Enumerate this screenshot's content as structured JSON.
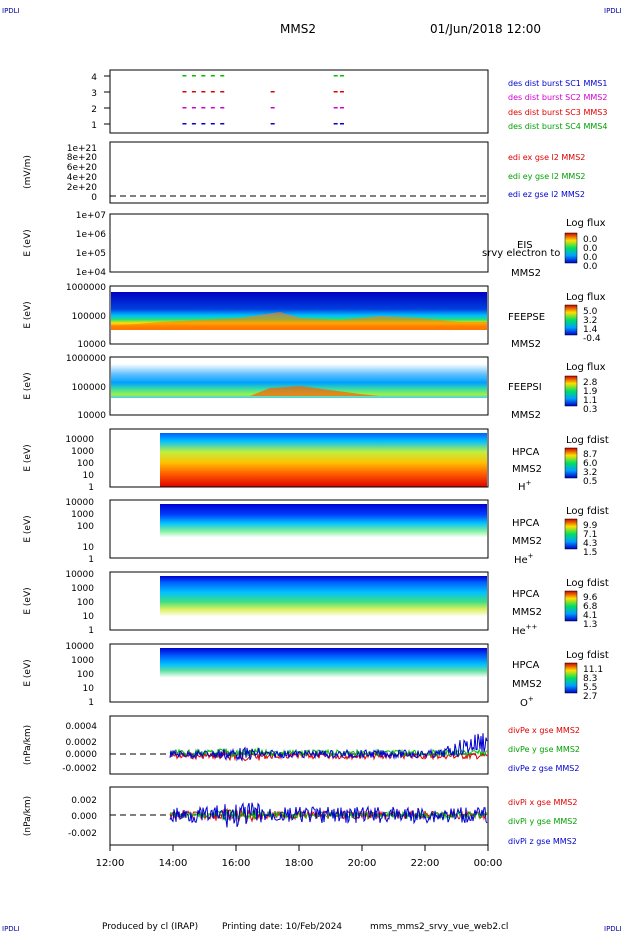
{
  "header": {
    "corner_left": "IPDLI",
    "corner_right": "IPDLI",
    "spacecraft": "MMS2",
    "datetime": "01/Jun/2018 12:00",
    "corner_bottom_left": "IPDLI",
    "corner_bottom_right": "IPDLI"
  },
  "footer": {
    "produced_by": "Produced by cl (IRAP)",
    "printing_date": "Printing date: 10/Feb/2024",
    "filename": "mms_mms2_srvy_vue_web2.cl"
  },
  "colors": {
    "red": "#e00000",
    "green": "#00c000",
    "blue": "#0000d0",
    "magenta": "#d000d0"
  },
  "chart_data": [
    {
      "type": "scatter",
      "panel": "burst",
      "y_ticks": [
        "4",
        "3",
        "2",
        "1"
      ],
      "legend": [
        {
          "text": "des dist burst SC1 MMS1",
          "color": "#0000d0"
        },
        {
          "text": "des dist burst SC2 MMS2",
          "color": "#d000d0"
        },
        {
          "text": "des dist burst SC3 MMS3",
          "color": "#e00000"
        },
        {
          "text": "des dist burst SC4 MMS4",
          "color": "#00c000"
        }
      ],
      "series": [
        {
          "level": 4,
          "color": "#00c000",
          "x": [
            14.3,
            14.6,
            14.9,
            15.2,
            15.5,
            19.1,
            19.3
          ]
        },
        {
          "level": 3,
          "color": "#e00000",
          "x": [
            14.3,
            14.6,
            14.9,
            15.2,
            15.5,
            17.1,
            19.1,
            19.3
          ]
        },
        {
          "level": 2,
          "color": "#d000d0",
          "x": [
            14.3,
            14.6,
            14.9,
            15.2,
            15.5,
            17.1,
            19.1,
            19.3
          ]
        },
        {
          "level": 1,
          "color": "#0000d0",
          "x": [
            14.3,
            14.6,
            14.9,
            15.2,
            15.5,
            17.1,
            19.1,
            19.3
          ]
        }
      ]
    },
    {
      "type": "line",
      "panel": "edi",
      "ylabel": "(mV/m)",
      "y_ticks": [
        "1e+21",
        "8e+20",
        "6e+20",
        "4e+20",
        "2e+20",
        "0"
      ],
      "legend": [
        {
          "text": "edi ex gse l2 MMS2",
          "color": "#e00000"
        },
        {
          "text": "edi ey gse l2 MMS2",
          "color": "#00c000"
        },
        {
          "text": "edi ez gse l2 MMS2",
          "color": "#0000d0"
        }
      ]
    },
    {
      "type": "heatmap",
      "panel": "eis",
      "ylabel": "E (eV)",
      "y_ticks": [
        "1e+07",
        "1e+06",
        "1e+05",
        "1e+04"
      ],
      "label_1": "EIS",
      "label_2": "srvy electron to",
      "label_3": "MMS2",
      "colorbar_title": "Log flux",
      "colorbar_ticks": [
        "0.0",
        "0.0",
        "0.0",
        "0.0"
      ]
    },
    {
      "type": "heatmap",
      "panel": "feepse",
      "ylabel": "E (eV)",
      "y_ticks": [
        "1000000",
        "100000",
        "10000"
      ],
      "label_1": "FEEPSE",
      "label_3": "MMS2",
      "colorbar_title": "Log flux",
      "colorbar_ticks": [
        "5.0",
        "3.2",
        "1.4",
        "-0.4"
      ]
    },
    {
      "type": "heatmap",
      "panel": "feepsi",
      "ylabel": "E (eV)",
      "y_ticks": [
        "1000000",
        "100000",
        "10000"
      ],
      "label_1": "FEEPSI",
      "label_3": "MMS2",
      "colorbar_title": "Log flux",
      "colorbar_ticks": [
        "2.8",
        "1.9",
        "1.1",
        "0.3"
      ]
    },
    {
      "type": "heatmap",
      "panel": "hpca_h",
      "ylabel": "E (eV)",
      "y_ticks": [
        "10000",
        "1000",
        "100",
        "10",
        "1"
      ],
      "label_1": "HPCA",
      "label_3": "MMS2",
      "species": "H",
      "charge": "+",
      "colorbar_title": "Log fdist",
      "colorbar_ticks": [
        "8.7",
        "6.0",
        "3.2",
        "0.5"
      ]
    },
    {
      "type": "heatmap",
      "panel": "hpca_he",
      "ylabel": "E (eV)",
      "y_ticks": [
        "10000",
        "1000",
        "100",
        "10",
        "1"
      ],
      "label_1": "HPCA",
      "label_3": "MMS2",
      "species": "He",
      "charge": "+",
      "colorbar_title": "Log fdist",
      "colorbar_ticks": [
        "9.9",
        "7.1",
        "4.3",
        "1.5"
      ]
    },
    {
      "type": "heatmap",
      "panel": "hpca_hepp",
      "ylabel": "E (eV)",
      "y_ticks": [
        "10000",
        "1000",
        "100",
        "10",
        "1"
      ],
      "label_1": "HPCA",
      "label_3": "MMS2",
      "species": "He",
      "charge": "++",
      "colorbar_title": "Log fdist",
      "colorbar_ticks": [
        "9.6",
        "6.8",
        "4.1",
        "1.3"
      ]
    },
    {
      "type": "heatmap",
      "panel": "hpca_o",
      "ylabel": "E (eV)",
      "y_ticks": [
        "10000",
        "1000",
        "100",
        "10",
        "1"
      ],
      "label_1": "HPCA",
      "label_3": "MMS2",
      "species": "O",
      "charge": "+",
      "colorbar_title": "Log fdist",
      "colorbar_ticks": [
        "11.1",
        "8.3",
        "5.5",
        "2.7"
      ]
    },
    {
      "type": "line",
      "panel": "divpe",
      "ylabel": "(nPa/km)",
      "y_ticks": [
        "0.0004",
        "0.0002",
        "0.0000",
        "-0.0002"
      ],
      "legend": [
        {
          "text": "divPe x gse MMS2",
          "color": "#e00000"
        },
        {
          "text": "divPe y gse MMS2",
          "color": "#00c000"
        },
        {
          "text": "divPe z gse MMS2",
          "color": "#0000d0"
        }
      ]
    },
    {
      "type": "line",
      "panel": "divpi",
      "ylabel": "(nPa/km)",
      "y_ticks": [
        "0.002",
        "0.000",
        "-0.002"
      ],
      "legend": [
        {
          "text": "divPi x gse MMS2",
          "color": "#e00000"
        },
        {
          "text": "divPi y gse MMS2",
          "color": "#00c000"
        },
        {
          "text": "divPi z gse MMS2",
          "color": "#0000d0"
        }
      ],
      "x_ticks": [
        "12:00",
        "14:00",
        "16:00",
        "18:00",
        "20:00",
        "22:00",
        "00:00"
      ]
    }
  ]
}
